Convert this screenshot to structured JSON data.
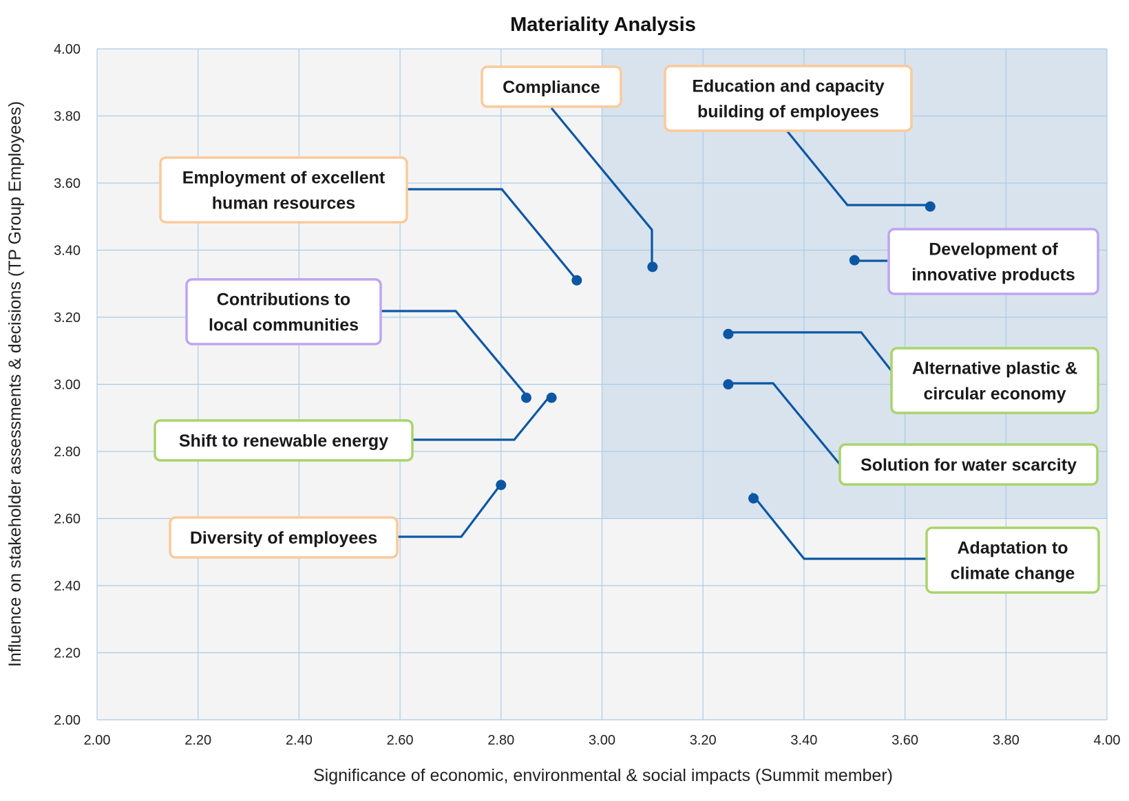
{
  "chart_data": {
    "type": "scatter",
    "title": "Materiality Analysis",
    "xlabel": "Significance of economic, environmental & social impacts (Summit member)",
    "ylabel": "Influence on stakeholder assessments & decisions (TP Group Employees)",
    "xlim": [
      2.0,
      4.0
    ],
    "ylim": [
      2.0,
      4.0
    ],
    "xticks": [
      "2.00",
      "2.20",
      "2.40",
      "2.60",
      "2.80",
      "3.00",
      "3.20",
      "3.40",
      "3.60",
      "3.80",
      "4.00"
    ],
    "yticks": [
      "2.00",
      "2.20",
      "2.40",
      "2.60",
      "2.80",
      "3.00",
      "3.20",
      "3.40",
      "3.60",
      "3.80",
      "4.00"
    ],
    "grid": true,
    "highlight_region": {
      "x": [
        3.0,
        4.0
      ],
      "y": [
        2.6,
        4.0
      ]
    },
    "colors": {
      "plot_bg": "#f4f4f4",
      "highlight": "#d9e3ed",
      "grid": "#a9cbe9",
      "point": "#0b57a4",
      "orange": "#fcc99a",
      "purple": "#bea4f0",
      "green": "#a8d46a"
    },
    "points": [
      {
        "label": "Compliance",
        "x": 3.1,
        "y": 3.35,
        "color": "orange"
      },
      {
        "label": "Education and capacity building of employees",
        "x": 3.65,
        "y": 3.53,
        "color": "orange"
      },
      {
        "label": "Employment of excellent human resources",
        "x": 2.95,
        "y": 3.31,
        "color": "orange"
      },
      {
        "label": "Development of innovative products",
        "x": 3.5,
        "y": 3.37,
        "color": "purple"
      },
      {
        "label": "Contributions to local communities",
        "x": 2.85,
        "y": 2.96,
        "color": "purple"
      },
      {
        "label": "Alternative plastic & circular economy",
        "x": 3.25,
        "y": 3.15,
        "color": "green"
      },
      {
        "label": "Shift to renewable energy",
        "x": 2.9,
        "y": 2.96,
        "color": "green"
      },
      {
        "label": "Solution for water scarcity",
        "x": 3.25,
        "y": 3.0,
        "color": "green"
      },
      {
        "label": "Diversity of employees",
        "x": 2.8,
        "y": 2.7,
        "color": "orange"
      },
      {
        "label": "Adaptation to climate change",
        "x": 3.3,
        "y": 2.66,
        "color": "green"
      }
    ]
  }
}
